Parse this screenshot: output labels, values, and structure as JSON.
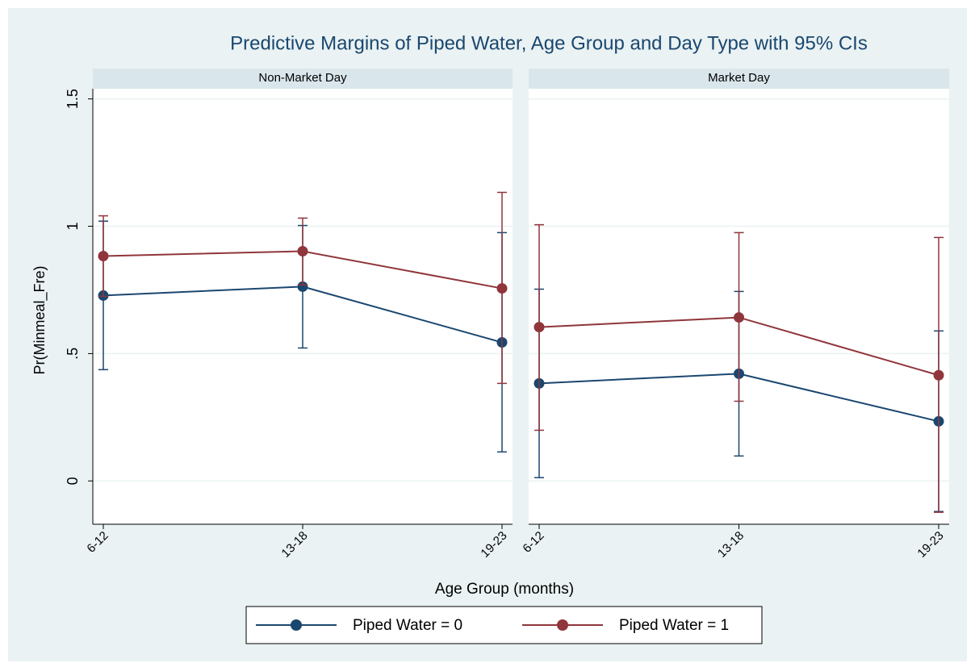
{
  "chart_data": {
    "type": "line",
    "title": "Predictive Margins of Piped Water, Age Group and Day Type with 95% CIs",
    "x_label": "Age Group (months)",
    "y_label": "Pr(Minmeal_Fre)",
    "categories": [
      "6-12",
      "13-18",
      "19-23"
    ],
    "ylim": [
      -0.17,
      1.54
    ],
    "yticks": [
      0,
      {
        "value": 0.5,
        "label": ".5"
      },
      1,
      1.5
    ],
    "grid": true,
    "series": [
      {
        "name": "Piped Water = 0",
        "color": "#1a476f"
      },
      {
        "name": "Piped Water = 1",
        "color": "#90353b"
      }
    ],
    "panels": [
      {
        "title": "Non-Market Day",
        "series": [
          {
            "values": [
              0.728,
              0.763,
              0.544
            ],
            "ci_lower": [
              0.437,
              0.522,
              0.114
            ],
            "ci_upper": [
              1.02,
              1.003,
              0.975
            ]
          },
          {
            "values": [
              0.883,
              0.902,
              0.756
            ],
            "ci_lower": [
              0.725,
              0.77,
              0.383
            ],
            "ci_upper": [
              1.041,
              1.032,
              1.133
            ]
          }
        ]
      },
      {
        "title": "Market Day",
        "series": [
          {
            "values": [
              0.383,
              0.421,
              0.234
            ],
            "ci_lower": [
              0.013,
              0.098,
              -0.12
            ],
            "ci_upper": [
              0.753,
              0.744,
              0.589
            ]
          },
          {
            "values": [
              0.604,
              0.642,
              0.415
            ],
            "ci_lower": [
              0.199,
              0.313,
              -0.123
            ],
            "ci_upper": [
              1.006,
              0.975,
              0.956
            ]
          }
        ]
      }
    ]
  }
}
